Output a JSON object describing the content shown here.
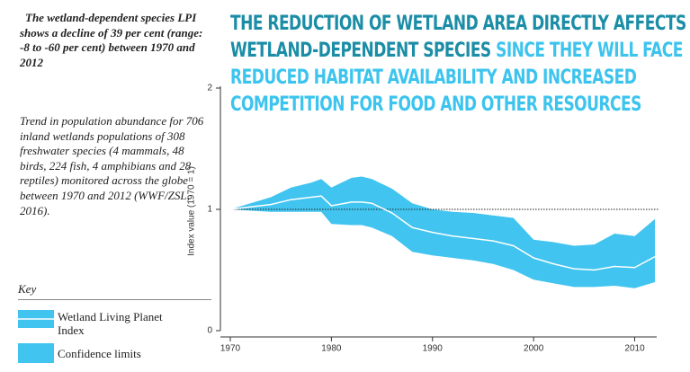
{
  "sidebar": {
    "summary": "The wetland-dependent species LPI shows a decline of 39 per cent (range: -8 to -60 per cent) between 1970 and 2012",
    "caption": "Trend in population abundance for 706 inland wetlands populations of 308 freshwater species (4 mammals, 48 birds, 224 fish, 4 amphibians and 28 reptiles) monitored across the globe between 1970 and 2012 (WWF/ZSL, 2016).",
    "key_title": "Key"
  },
  "headline": {
    "dark": "THE REDUCTION OF WETLAND AREA DIRECTLY AFFECTS WETLAND-DEPENDENT SPECIES",
    "light": "SINCE THEY WILL FACE REDUCED HABITAT AVAILABILITY AND INCREASED COMPETITION FOR FOOD AND OTHER RESOURCES"
  },
  "chart_data": {
    "type": "line",
    "y_label": "Index value (1970 = 1)",
    "x": [
      1970,
      1972,
      1974,
      1976,
      1978,
      1979,
      1980,
      1982,
      1983,
      1984,
      1986,
      1988,
      1990,
      1992,
      1994,
      1996,
      1998,
      2000,
      2002,
      2004,
      2006,
      2008,
      2010,
      2012
    ],
    "series": [
      {
        "name": "Wetland Living Planet Index",
        "color": "#ffffff",
        "values": [
          1.0,
          1.02,
          1.04,
          1.08,
          1.1,
          1.11,
          1.03,
          1.06,
          1.06,
          1.05,
          0.97,
          0.85,
          0.81,
          0.78,
          0.76,
          0.74,
          0.7,
          0.6,
          0.55,
          0.51,
          0.5,
          0.53,
          0.52,
          0.61
        ]
      },
      {
        "name": "Confidence limits",
        "color": "#41c4ef",
        "upper": [
          1.0,
          1.05,
          1.1,
          1.18,
          1.22,
          1.25,
          1.18,
          1.26,
          1.27,
          1.25,
          1.17,
          1.05,
          1.0,
          0.98,
          0.97,
          0.95,
          0.93,
          0.75,
          0.73,
          0.7,
          0.71,
          0.8,
          0.78,
          0.92
        ],
        "lower": [
          1.0,
          0.99,
          0.98,
          0.98,
          0.98,
          0.98,
          0.88,
          0.87,
          0.87,
          0.85,
          0.78,
          0.65,
          0.62,
          0.6,
          0.58,
          0.55,
          0.5,
          0.42,
          0.39,
          0.36,
          0.36,
          0.37,
          0.35,
          0.4
        ]
      }
    ],
    "baseline": 1,
    "xlim": [
      1970,
      2012
    ],
    "xticks": [
      1970,
      1980,
      1990,
      2000,
      2010
    ],
    "ylim": [
      0,
      2
    ],
    "yticks": [
      0,
      1,
      2
    ]
  }
}
